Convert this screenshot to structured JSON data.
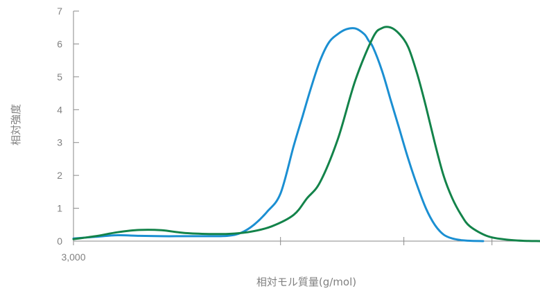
{
  "chart_data": {
    "type": "line",
    "title": "",
    "xlabel": "相対モル質量(g/mol)",
    "ylabel": "相対強度",
    "ylim": [
      0,
      7
    ],
    "yticks": [
      "0",
      "1",
      "2",
      "3",
      "4",
      "5",
      "6",
      "7"
    ],
    "xticks": [
      {
        "value": 0,
        "label": "3,000"
      },
      {
        "value": 0.47,
        "label": ""
      },
      {
        "value": 0.75,
        "label": ""
      },
      {
        "value": 0.95,
        "label": ""
      }
    ],
    "x_scale": "relative log molar mass (only first tick labeled)",
    "xlim": [
      0,
      1.11
    ],
    "grid": false,
    "series": [
      {
        "color": "#1b8fd2",
        "x": [
          0.0,
          0.05,
          0.1,
          0.15,
          0.2,
          0.25,
          0.3,
          0.35,
          0.38,
          0.41,
          0.44,
          0.47,
          0.5,
          0.52,
          0.54,
          0.56,
          0.58,
          0.6,
          0.62,
          0.64,
          0.66,
          0.67,
          0.68,
          0.7,
          0.72,
          0.74,
          0.76,
          0.78,
          0.8,
          0.82,
          0.84,
          0.86,
          0.88,
          0.9,
          0.93
        ],
        "y": [
          0.08,
          0.13,
          0.18,
          0.16,
          0.15,
          0.15,
          0.15,
          0.16,
          0.25,
          0.5,
          0.9,
          1.45,
          2.9,
          3.8,
          4.7,
          5.5,
          6.05,
          6.3,
          6.45,
          6.47,
          6.3,
          6.1,
          5.9,
          5.2,
          4.3,
          3.4,
          2.5,
          1.7,
          1.0,
          0.5,
          0.2,
          0.08,
          0.03,
          0.01,
          0.0
        ]
      },
      {
        "color": "#13834a",
        "x": [
          0.0,
          0.05,
          0.1,
          0.15,
          0.2,
          0.25,
          0.3,
          0.35,
          0.4,
          0.45,
          0.5,
          0.53,
          0.56,
          0.6,
          0.64,
          0.68,
          0.7,
          0.72,
          0.74,
          0.76,
          0.78,
          0.8,
          0.82,
          0.84,
          0.86,
          0.88,
          0.9,
          0.94,
          0.98,
          1.02,
          1.06
        ],
        "y": [
          0.06,
          0.15,
          0.27,
          0.34,
          0.33,
          0.25,
          0.22,
          0.22,
          0.28,
          0.45,
          0.8,
          1.3,
          1.8,
          3.1,
          4.9,
          6.2,
          6.48,
          6.5,
          6.3,
          5.9,
          5.1,
          4.1,
          3.0,
          2.0,
          1.3,
          0.8,
          0.45,
          0.15,
          0.05,
          0.01,
          0.0
        ]
      }
    ]
  }
}
